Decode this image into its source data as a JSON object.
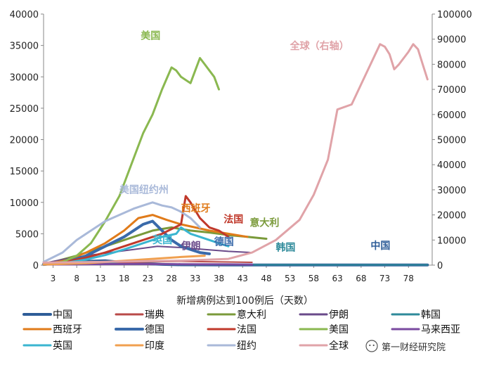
{
  "chart_data": {
    "type": "line",
    "xlabel": "新增病例达到100例后（天数）",
    "x_ticks": [
      3,
      8,
      13,
      18,
      23,
      28,
      33,
      38,
      43,
      48,
      53,
      58,
      63,
      68,
      73,
      78
    ],
    "xlim": [
      1,
      83
    ],
    "ylim_left": [
      0,
      40000
    ],
    "y_ticks_left": [
      0,
      5000,
      10000,
      15000,
      20000,
      25000,
      30000,
      35000,
      40000
    ],
    "ylim_right": [
      0,
      100000
    ],
    "y_ticks_right": [
      0,
      10000,
      20000,
      30000,
      40000,
      50000,
      60000,
      70000,
      80000,
      90000,
      100000
    ],
    "grid": false,
    "legend_position": "bottom",
    "series": [
      {
        "name": "中国",
        "color": "#2e5d98",
        "width": 4,
        "axis": "left",
        "x": [
          1,
          5,
          10,
          14,
          18,
          22,
          26,
          30,
          35,
          40,
          45,
          50,
          55,
          60,
          65,
          70,
          75,
          80,
          82
        ],
        "y": [
          150,
          300,
          600,
          700,
          400,
          250,
          120,
          60,
          40,
          30,
          30,
          25,
          20,
          20,
          20,
          20,
          20,
          20,
          20
        ]
      },
      {
        "name": "瑞典",
        "color": "#b94a48",
        "width": 2,
        "axis": "left",
        "x": [
          1,
          5,
          10,
          15,
          20,
          25,
          30,
          35,
          40,
          45
        ],
        "y": [
          80,
          120,
          200,
          300,
          450,
          550,
          600,
          550,
          500,
          450
        ]
      },
      {
        "name": "意大利",
        "color": "#7a9a3a",
        "width": 3,
        "axis": "left",
        "x": [
          1,
          4,
          8,
          12,
          16,
          20,
          24,
          28,
          32,
          36,
          40,
          44,
          48
        ],
        "y": [
          200,
          700,
          1500,
          2500,
          3500,
          4500,
          5500,
          6000,
          5500,
          5200,
          4800,
          4500,
          4200
        ]
      },
      {
        "name": "伊朗",
        "color": "#6a4a8a",
        "width": 2,
        "axis": "left",
        "x": [
          1,
          5,
          10,
          15,
          20,
          25,
          30,
          35,
          40,
          45
        ],
        "y": [
          300,
          900,
          1500,
          2000,
          2500,
          3000,
          2800,
          2500,
          2200,
          2000
        ]
      },
      {
        "name": "韩国",
        "color": "#2e8a9a",
        "width": 2,
        "axis": "left",
        "x": [
          1,
          4,
          7,
          10,
          15,
          20,
          30,
          40,
          50,
          60,
          70,
          80,
          82
        ],
        "y": [
          150,
          500,
          800,
          600,
          300,
          120,
          90,
          70,
          60,
          50,
          40,
          40,
          40
        ]
      },
      {
        "name": "西班牙",
        "color": "#e07b1a",
        "width": 3,
        "axis": "left",
        "x": [
          1,
          6,
          10,
          14,
          18,
          21,
          24,
          27,
          30,
          33,
          36,
          40,
          44
        ],
        "y": [
          100,
          800,
          2000,
          3500,
          5500,
          7500,
          8000,
          7200,
          6500,
          6000,
          5500,
          5000,
          4500
        ]
      },
      {
        "name": "德国",
        "color": "#3a6aaa",
        "width": 4,
        "axis": "left",
        "x": [
          1,
          6,
          10,
          14,
          18,
          20,
          22,
          24,
          26,
          28,
          30,
          32,
          34,
          36
        ],
        "y": [
          100,
          500,
          1500,
          3000,
          4500,
          5500,
          6500,
          7000,
          5500,
          4000,
          3000,
          2500,
          2000,
          1800
        ]
      },
      {
        "name": "法国",
        "color": "#c0392b",
        "width": 3,
        "axis": "left",
        "x": [
          1,
          6,
          10,
          14,
          18,
          22,
          26,
          30,
          31,
          32,
          34,
          36,
          38,
          40
        ],
        "y": [
          100,
          600,
          1200,
          2000,
          3000,
          4000,
          5000,
          6500,
          11000,
          10000,
          7500,
          6000,
          5500,
          4500
        ]
      },
      {
        "name": "美国",
        "color": "#8ab850",
        "width": 3,
        "axis": "left",
        "x": [
          1,
          5,
          8,
          11,
          14,
          17,
          20,
          22,
          24,
          26,
          28,
          29,
          30,
          31,
          32,
          33,
          34,
          35,
          36,
          37,
          38
        ],
        "y": [
          100,
          500,
          1500,
          3500,
          7000,
          11000,
          17000,
          21000,
          24000,
          28000,
          31500,
          31000,
          30000,
          29500,
          29000,
          31000,
          33000,
          32000,
          31000,
          30000,
          28000
        ]
      },
      {
        "name": "马来西亚",
        "color": "#7a4aa0",
        "width": 3,
        "axis": "left",
        "x": [
          1,
          10,
          20,
          30,
          40,
          45
        ],
        "y": [
          100,
          150,
          180,
          150,
          120,
          100
        ]
      },
      {
        "name": "英国",
        "color": "#3ab5d0",
        "width": 3,
        "axis": "left",
        "x": [
          1,
          6,
          10,
          14,
          18,
          22,
          26,
          29,
          30,
          31,
          32,
          34,
          36,
          38,
          40
        ],
        "y": [
          100,
          400,
          900,
          1600,
          2500,
          3500,
          4500,
          5000,
          6000,
          5500,
          5000,
          4500,
          4000,
          3500,
          3000
        ]
      },
      {
        "name": "印度",
        "color": "#f0a050",
        "width": 3,
        "axis": "left",
        "x": [
          1,
          10,
          20,
          30,
          35
        ],
        "y": [
          100,
          300,
          800,
          1300,
          1500
        ]
      },
      {
        "name": "纽约",
        "color": "#a9b9d9",
        "width": 3,
        "axis": "left",
        "x": [
          1,
          5,
          8,
          11,
          14,
          17,
          20,
          22,
          24,
          26,
          28,
          30,
          32,
          34
        ],
        "y": [
          500,
          2000,
          4000,
          5500,
          7000,
          8000,
          9000,
          9500,
          10000,
          9500,
          9200,
          8500,
          7500,
          6000
        ]
      },
      {
        "name": "全球",
        "color": "#e0a3a8",
        "width": 3,
        "axis": "right",
        "x": [
          1,
          10,
          20,
          30,
          40,
          45,
          50,
          55,
          58,
          61,
          63,
          66,
          68,
          70,
          72,
          73,
          74,
          75,
          76,
          78,
          79,
          80,
          81,
          82
        ],
        "y": [
          1000,
          1200,
          1500,
          1800,
          2500,
          5000,
          10000,
          18000,
          28000,
          42000,
          62000,
          64000,
          72000,
          80000,
          88000,
          87000,
          84000,
          78000,
          80000,
          85000,
          88000,
          86000,
          80000,
          74000
        ]
      }
    ]
  },
  "annotations": [
    {
      "text": "美国",
      "x": 21.5,
      "y": 36000,
      "axis": "left",
      "color": "#8ab850"
    },
    {
      "text": "全球（右轴）",
      "x": 53,
      "y": 86000,
      "axis": "right",
      "color": "#e0a3a8"
    },
    {
      "text": "美国纽约州",
      "x": 17,
      "y": 11500,
      "axis": "left",
      "color": "#a9b9d9"
    },
    {
      "text": "西班牙",
      "x": 30,
      "y": 8500,
      "axis": "left",
      "color": "#e07b1a"
    },
    {
      "text": "法国",
      "x": 39,
      "y": 6800,
      "axis": "left",
      "color": "#c0392b"
    },
    {
      "text": "意大利",
      "x": 44.5,
      "y": 6200,
      "axis": "left",
      "color": "#7a9a3a"
    },
    {
      "text": "英国",
      "x": 24,
      "y": 3500,
      "axis": "left",
      "color": "#3ab5d0"
    },
    {
      "text": "伊朗",
      "x": 30,
      "y": 2500,
      "axis": "left",
      "color": "#6a4a8a"
    },
    {
      "text": "德国",
      "x": 37,
      "y": 3200,
      "axis": "left",
      "color": "#3a6aaa"
    },
    {
      "text": "韩国",
      "x": 50,
      "y": 2300,
      "axis": "left",
      "color": "#2e8a9a"
    },
    {
      "text": "中国",
      "x": 70,
      "y": 2600,
      "axis": "left",
      "color": "#2e5d98"
    }
  ],
  "watermark": {
    "text": "第一财经研究院"
  }
}
